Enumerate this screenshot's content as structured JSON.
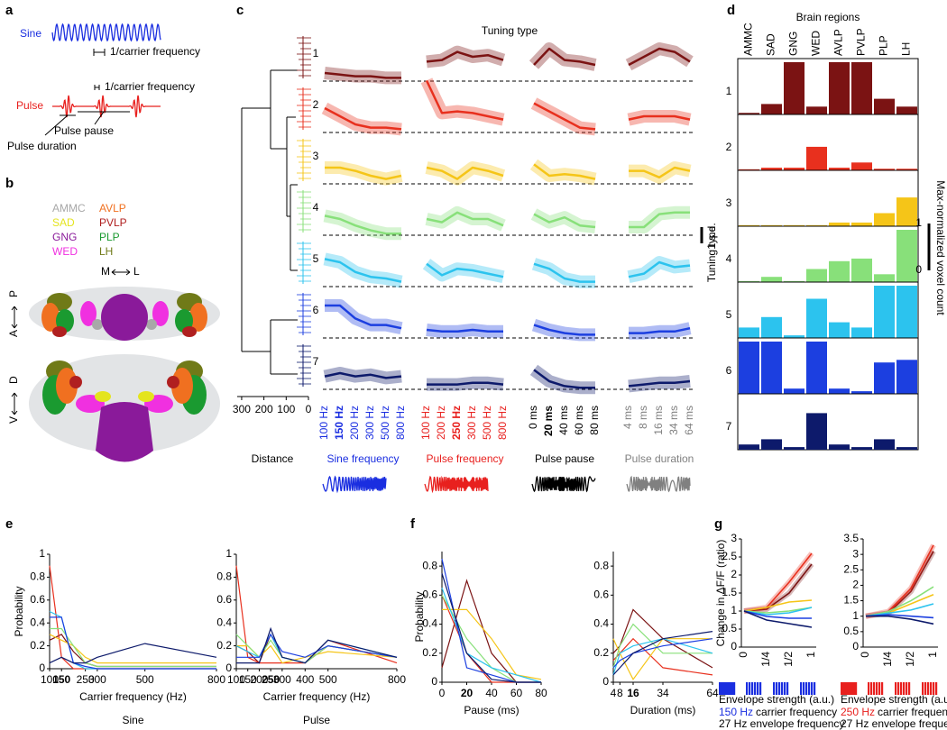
{
  "panel_labels": [
    "a",
    "b",
    "c",
    "d",
    "e",
    "f",
    "g"
  ],
  "panel_a": {
    "sine": "Sine",
    "sine_period": "1/carrier frequency",
    "pulse": "Pulse",
    "pulse_period": "1/carrier frequency",
    "pulse_pause": "Pulse pause",
    "pulse_duration": "Pulse duration",
    "sine_color": "#1a2ee0",
    "pulse_color": "#e8201e"
  },
  "panel_b": {
    "regions": [
      {
        "name": "AMMC",
        "color": "#a8a8a8"
      },
      {
        "name": "SAD",
        "color": "#e4e41e"
      },
      {
        "name": "GNG",
        "color": "#8a1a9a"
      },
      {
        "name": "WED",
        "color": "#f030e0"
      },
      {
        "name": "AVLP",
        "color": "#f07020"
      },
      {
        "name": "PVLP",
        "color": "#b02020"
      },
      {
        "name": "PLP",
        "color": "#1a9a30"
      },
      {
        "name": "LH",
        "color": "#707a18"
      }
    ],
    "orientation": {
      "m": "M",
      "l": "L",
      "a": "A",
      "p": "P",
      "v": "V",
      "d": "D"
    }
  },
  "chart_data": [
    {
      "type": "tuning",
      "title": "Tuning type",
      "groups": [
        {
          "name": "Sine frequency",
          "color": "#1a2ee0",
          "categories": [
            "100 Hz",
            "150 Hz",
            "200 Hz",
            "300 Hz",
            "500 Hz",
            "800 Hz"
          ],
          "bold": 1
        },
        {
          "name": "Pulse frequency",
          "color": "#e8201e",
          "categories": [
            "100 Hz",
            "200 Hz",
            "250 Hz",
            "300 Hz",
            "500 Hz",
            "800 Hz"
          ],
          "bold": 2
        },
        {
          "name": "Pulse pause",
          "color": "#000000",
          "categories": [
            "0 ms",
            "20 ms",
            "40 ms",
            "60 ms",
            "80 ms"
          ],
          "bold": 1
        },
        {
          "name": "Pulse duration",
          "color": "#808080",
          "categories": [
            "4 ms",
            "8 ms",
            "16 ms",
            "34 ms",
            "64 ms"
          ]
        }
      ],
      "series": [
        {
          "name": "1",
          "color": "#7b1313",
          "values": [
            [
              0.5,
              0.4,
              0.3,
              0.3,
              0.2,
              0.2
            ],
            [
              1.2,
              1.3,
              1.8,
              1.5,
              1.6,
              1.3
            ],
            [
              1.0,
              2.0,
              1.3,
              1.2,
              1.0
            ],
            [
              1.0,
              1.5,
              2.0,
              1.8,
              1.2
            ]
          ]
        },
        {
          "name": "2",
          "color": "#e8301e",
          "values": [
            [
              1.5,
              1.0,
              0.5,
              0.3,
              0.3,
              0.2
            ],
            [
              3.2,
              1.2,
              1.3,
              1.2,
              1.0,
              0.8
            ],
            [
              1.8,
              1.3,
              0.8,
              0.3,
              0.2
            ],
            [
              0.8,
              1.0,
              1.0,
              1.0,
              0.8
            ]
          ]
        },
        {
          "name": "3",
          "color": "#f5c518",
          "values": [
            [
              1.0,
              1.0,
              0.8,
              0.5,
              0.3,
              0.5
            ],
            [
              1.0,
              0.8,
              0.3,
              1.0,
              0.8,
              0.5
            ],
            [
              1.2,
              0.5,
              0.6,
              0.5,
              0.3
            ],
            [
              0.8,
              0.8,
              0.4,
              1.0,
              0.8
            ]
          ]
        },
        {
          "name": "4",
          "color": "#88e07a",
          "values": [
            [
              1.2,
              1.0,
              0.6,
              0.3,
              0.1,
              0.1
            ],
            [
              1.0,
              0.8,
              1.4,
              1.0,
              1.0,
              0.6
            ],
            [
              1.3,
              0.8,
              1.1,
              0.6,
              0.5
            ],
            [
              0.5,
              0.5,
              1.3,
              1.4,
              1.4
            ]
          ]
        },
        {
          "name": "5",
          "color": "#2cc3ee",
          "values": [
            [
              1.7,
              1.5,
              0.9,
              0.6,
              0.5,
              0.3
            ],
            [
              1.4,
              0.7,
              1.1,
              1.0,
              0.8,
              0.6
            ],
            [
              1.4,
              1.1,
              0.5,
              0.3,
              0.3
            ],
            [
              0.6,
              0.8,
              1.5,
              1.2,
              1.3
            ]
          ]
        },
        {
          "name": "6",
          "color": "#1c3fe0",
          "values": [
            [
              2.0,
              2.0,
              1.2,
              0.8,
              0.8,
              0.6
            ],
            [
              0.5,
              0.4,
              0.4,
              0.5,
              0.4,
              0.4
            ],
            [
              0.8,
              0.5,
              0.3,
              0.2,
              0.2
            ],
            [
              0.3,
              0.3,
              0.4,
              0.4,
              0.6
            ]
          ]
        },
        {
          "name": "7",
          "color": "#0d1a6b",
          "values": [
            [
              0.8,
              1.0,
              0.8,
              0.9,
              0.7,
              0.8
            ],
            [
              0.3,
              0.3,
              0.3,
              0.4,
              0.4,
              0.3
            ],
            [
              1.2,
              0.5,
              0.2,
              0.1,
              0.1
            ],
            [
              0.2,
              0.3,
              0.4,
              0.4,
              0.5
            ]
          ]
        }
      ],
      "scale_bar": {
        "value": 1,
        "label": "1 s.d."
      },
      "distance": {
        "label": "Distance",
        "xlim": [
          320,
          0
        ],
        "xticks": [
          300,
          200,
          100,
          0
        ]
      }
    },
    {
      "type": "bar-grid",
      "title": "Brain regions",
      "ylabel": "Tuning type",
      "categories": [
        "AMMC",
        "SAD",
        "GNG",
        "WED",
        "AVLP",
        "PVLP",
        "PLP",
        "LH"
      ],
      "ylim": [
        0,
        1
      ],
      "series": [
        {
          "name": "1",
          "color": "#7b1313",
          "values": [
            0.03,
            0.2,
            1,
            0.15,
            1,
            1,
            0.3,
            0.15
          ]
        },
        {
          "name": "2",
          "color": "#e8301e",
          "values": [
            0.02,
            0.05,
            0.05,
            0.45,
            0.05,
            0.15,
            0.03,
            0.03
          ]
        },
        {
          "name": "3",
          "color": "#f5c518",
          "values": [
            0.02,
            0.02,
            0.02,
            0.02,
            0.07,
            0.07,
            0.25,
            0.55
          ]
        },
        {
          "name": "4",
          "color": "#88e07a",
          "values": [
            0.02,
            0.1,
            0.02,
            0.25,
            0.4,
            0.45,
            0.15,
            1
          ]
        },
        {
          "name": "5",
          "color": "#2cc3ee",
          "values": [
            0.2,
            0.4,
            0.05,
            0.75,
            0.3,
            0.2,
            1,
            1
          ]
        },
        {
          "name": "6",
          "color": "#1c3fe0",
          "values": [
            1,
            1,
            0.1,
            1,
            0.1,
            0.05,
            0.6,
            0.65
          ]
        },
        {
          "name": "7",
          "color": "#0d1a6b",
          "values": [
            0.1,
            0.2,
            0.05,
            0.7,
            0.1,
            0.05,
            0.2,
            0.05
          ]
        }
      ],
      "colorbar": {
        "label": "Max-normalized voxel count",
        "ticks": [
          1,
          0
        ]
      }
    },
    {
      "type": "line",
      "ylabel": "Probability",
      "xlabel": "Carrier frequency (Hz)",
      "subtitle": "Sine",
      "x": [
        100,
        150,
        200,
        250,
        300,
        500,
        800
      ],
      "xlim": [
        100,
        800
      ],
      "xticks": [
        100,
        150,
        250,
        300,
        500,
        800
      ],
      "bold_xtick": 1,
      "ylim": [
        0,
        1
      ],
      "yticks": [
        0,
        0.2,
        0.4,
        0.6,
        0.8,
        1
      ],
      "series": [
        {
          "color": "#7b1313",
          "values": [
            0.25,
            0.3,
            0.15,
            0.05,
            0.02,
            0.02,
            0.02
          ]
        },
        {
          "color": "#e8301e",
          "values": [
            0.9,
            0.1,
            0,
            0,
            0,
            0,
            0
          ]
        },
        {
          "color": "#f5c518",
          "values": [
            0.3,
            0.25,
            0.2,
            0.1,
            0.05,
            0.05,
            0.05
          ]
        },
        {
          "color": "#88e07a",
          "values": [
            0.35,
            0.35,
            0.2,
            0.05,
            0.02,
            0.02,
            0.02
          ]
        },
        {
          "color": "#2cc3ee",
          "values": [
            0.5,
            0.45,
            0.05,
            0,
            0,
            0,
            0
          ]
        },
        {
          "color": "#1c3fe0",
          "values": [
            0.45,
            0.45,
            0.05,
            0.02,
            0,
            0,
            0
          ]
        },
        {
          "color": "#0d1a6b",
          "values": [
            0.05,
            0.1,
            0.05,
            0.05,
            0.1,
            0.22,
            0.1
          ]
        }
      ]
    },
    {
      "type": "line",
      "xlabel": "Carrier frequency (Hz)",
      "subtitle": "Pulse",
      "x": [
        100,
        150,
        200,
        250,
        300,
        400,
        500,
        800
      ],
      "xlim": [
        100,
        800
      ],
      "xticks": [
        100,
        150,
        200,
        250,
        300,
        400,
        500,
        800
      ],
      "bold_xtick": 3,
      "ylim": [
        0,
        1
      ],
      "yticks": [
        0,
        0.2,
        0.4,
        0.6,
        0.8,
        1
      ],
      "series": [
        {
          "color": "#7b1313",
          "values": [
            0.2,
            0.15,
            0.05,
            0.3,
            0.1,
            0.05,
            0.2,
            0.1
          ]
        },
        {
          "color": "#e8301e",
          "values": [
            0.9,
            0.1,
            0.05,
            0.05,
            0.05,
            0.05,
            0.25,
            0.05
          ]
        },
        {
          "color": "#f5c518",
          "values": [
            0.2,
            0.2,
            0.1,
            0.2,
            0.05,
            0.1,
            0.15,
            0.1
          ]
        },
        {
          "color": "#88e07a",
          "values": [
            0.3,
            0.2,
            0.1,
            0.25,
            0.1,
            0.05,
            0.2,
            0.1
          ]
        },
        {
          "color": "#2cc3ee",
          "values": [
            0.2,
            0.15,
            0.1,
            0.3,
            0.1,
            0.05,
            0.25,
            0.1
          ]
        },
        {
          "color": "#1c3fe0",
          "values": [
            0.1,
            0.1,
            0.1,
            0.3,
            0.15,
            0.1,
            0.2,
            0.1
          ]
        },
        {
          "color": "#0d1a6b",
          "values": [
            0.05,
            0.05,
            0.05,
            0.35,
            0.1,
            0.05,
            0.25,
            0.1
          ]
        }
      ]
    },
    {
      "type": "line",
      "ylabel": "Probability",
      "xlabel": "Pause (ms)",
      "x": [
        0,
        20,
        40,
        60,
        80
      ],
      "xlim": [
        0,
        80
      ],
      "xticks": [
        0,
        20,
        40,
        60,
        80
      ],
      "bold_xtick": 1,
      "ylim": [
        0,
        0.9
      ],
      "yticks": [
        0,
        0.2,
        0.4,
        0.6,
        0.8
      ],
      "series": [
        {
          "color": "#7b1313",
          "values": [
            0.1,
            0.7,
            0.2,
            0,
            0
          ]
        },
        {
          "color": "#e8301e",
          "values": [
            0.6,
            0.2,
            0,
            0,
            0
          ]
        },
        {
          "color": "#f5c518",
          "values": [
            0.5,
            0.5,
            0.3,
            0.05,
            0.02
          ]
        },
        {
          "color": "#88e07a",
          "values": [
            0.6,
            0.3,
            0.1,
            0,
            0
          ]
        },
        {
          "color": "#2cc3ee",
          "values": [
            0.65,
            0.2,
            0.1,
            0.05,
            0
          ]
        },
        {
          "color": "#1c3fe0",
          "values": [
            0.85,
            0.1,
            0.05,
            0,
            0
          ]
        },
        {
          "color": "#0d1a6b",
          "values": [
            0.75,
            0.2,
            0.02,
            0,
            0
          ]
        }
      ]
    },
    {
      "type": "line",
      "xlabel": "Duration (ms)",
      "x": [
        4,
        8,
        16,
        34,
        64
      ],
      "xlim": [
        4,
        64
      ],
      "xticks": [
        4,
        8,
        16,
        34,
        64
      ],
      "bold_xtick": 2,
      "ylim": [
        0,
        0.9
      ],
      "yticks": [
        0,
        0.2,
        0.4,
        0.6,
        0.8
      ],
      "series": [
        {
          "color": "#7b1313",
          "values": [
            0.2,
            0.25,
            0.5,
            0.3,
            0.1
          ]
        },
        {
          "color": "#e8301e",
          "values": [
            0.15,
            0.2,
            0.3,
            0.1,
            0.05
          ]
        },
        {
          "color": "#f5c518",
          "values": [
            0.3,
            0.2,
            0.02,
            0.3,
            0.3
          ]
        },
        {
          "color": "#88e07a",
          "values": [
            0.1,
            0.25,
            0.4,
            0.2,
            0.2
          ]
        },
        {
          "color": "#2cc3ee",
          "values": [
            0.05,
            0.2,
            0.25,
            0.3,
            0.2
          ]
        },
        {
          "color": "#1c3fe0",
          "values": [
            0.1,
            0.15,
            0.2,
            0.25,
            0.3
          ]
        },
        {
          "color": "#0d1a6b",
          "values": [
            0.05,
            0.1,
            0.2,
            0.3,
            0.35
          ]
        }
      ]
    },
    {
      "type": "line",
      "ylabel": "Change in ΔF/F (ratio)",
      "xlabel": "Envelope strength (a.u.)",
      "carrier_hz": "150 Hz",
      "carrier_hz_color": "#1a2ee0",
      "carrier_text": "carrier frequency",
      "envelope_text": "27 Hz envelope frequency",
      "categories": [
        "0",
        "1/4",
        "1/2",
        "1"
      ],
      "ylim": [
        0,
        3
      ],
      "yticks": [
        0,
        0.5,
        1,
        1.5,
        2,
        2.5,
        3
      ],
      "series": [
        {
          "color": "#7b1313",
          "values": [
            1,
            1.05,
            1.5,
            2.3
          ]
        },
        {
          "color": "#e8301e",
          "values": [
            1,
            1.1,
            1.8,
            2.6
          ]
        },
        {
          "color": "#f5c518",
          "values": [
            1,
            1.1,
            1.25,
            1.3
          ]
        },
        {
          "color": "#88e07a",
          "values": [
            1,
            0.95,
            1.0,
            1.1
          ]
        },
        {
          "color": "#2cc3ee",
          "values": [
            1,
            0.9,
            0.95,
            1.1
          ]
        },
        {
          "color": "#1c3fe0",
          "values": [
            1,
            0.85,
            0.8,
            0.8
          ]
        },
        {
          "color": "#0d1a6b",
          "values": [
            1,
            0.75,
            0.65,
            0.55
          ]
        }
      ]
    },
    {
      "type": "line",
      "xlabel": "Envelope strength (a.u.)",
      "carrier_hz": "250 Hz",
      "carrier_hz_color": "#e8201e",
      "carrier_text": "carrier frequency",
      "envelope_text": "27 Hz envelope frequency",
      "categories": [
        "0",
        "1/4",
        "1/2",
        "1"
      ],
      "ylim": [
        0,
        3.5
      ],
      "yticks": [
        0,
        0.5,
        1,
        1.5,
        2,
        2.5,
        3,
        3.5
      ],
      "series": [
        {
          "color": "#7b1313",
          "values": [
            1,
            1.1,
            1.8,
            3.1
          ]
        },
        {
          "color": "#e8301e",
          "values": [
            1,
            1.15,
            1.9,
            3.3
          ]
        },
        {
          "color": "#f5c518",
          "values": [
            1,
            1.1,
            1.4,
            1.7
          ]
        },
        {
          "color": "#88e07a",
          "values": [
            1,
            1.15,
            1.5,
            1.95
          ]
        },
        {
          "color": "#2cc3ee",
          "values": [
            1,
            1.1,
            1.2,
            1.4
          ]
        },
        {
          "color": "#1c3fe0",
          "values": [
            1,
            1.05,
            1.0,
            0.95
          ]
        },
        {
          "color": "#0d1a6b",
          "values": [
            1,
            1.0,
            0.9,
            0.75
          ]
        }
      ]
    }
  ]
}
